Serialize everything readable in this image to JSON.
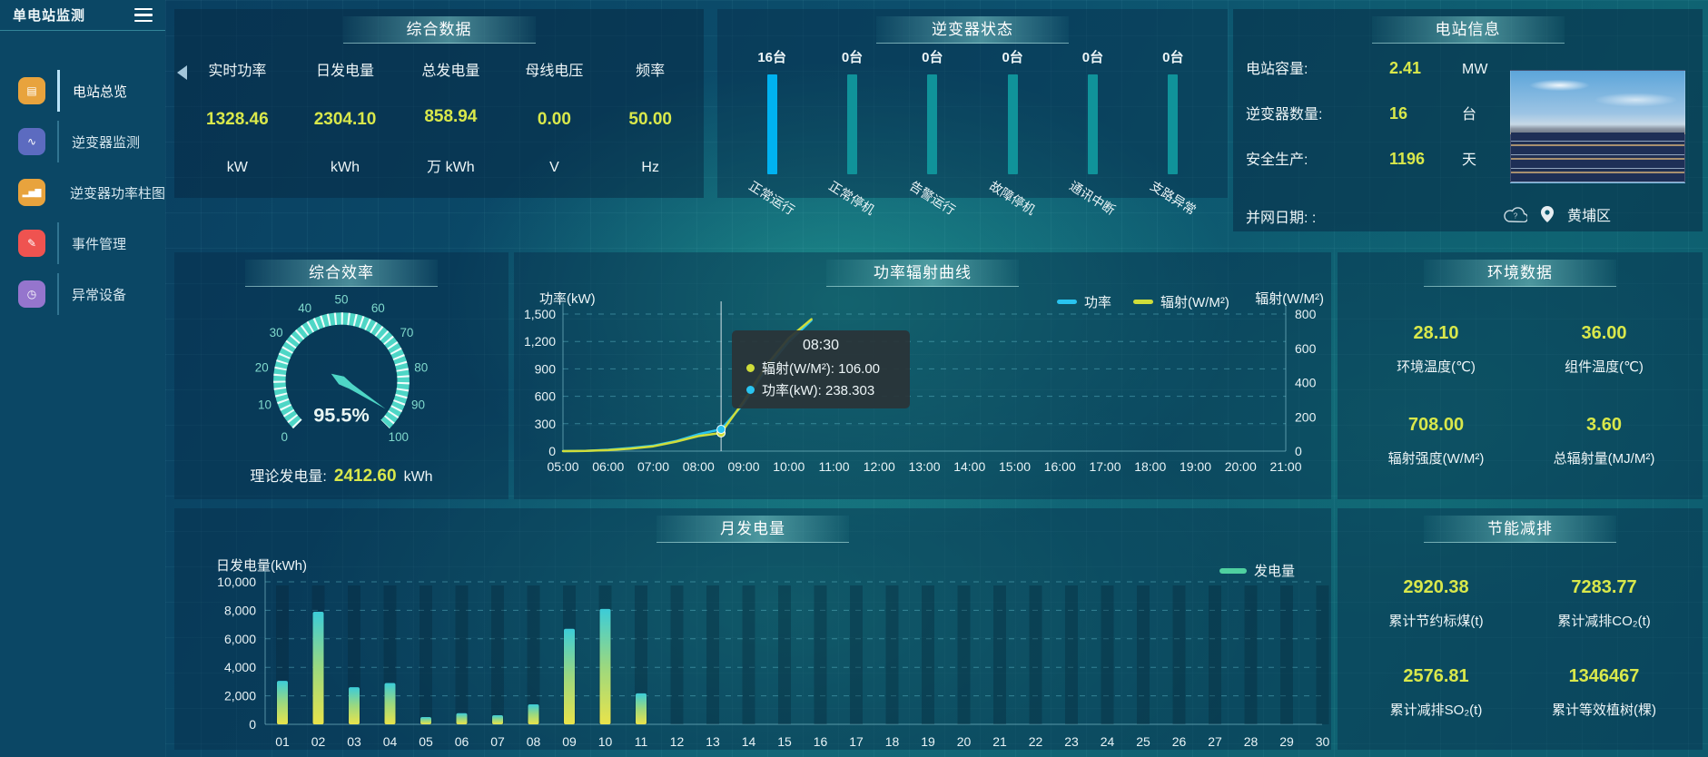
{
  "app": {
    "title": "单电站监测"
  },
  "colors": {
    "value_accent": "#d9e84b",
    "inverter_bar_active": "#00b2f0",
    "inverter_bar_idle": "#10939a",
    "line_power": "#29c4f0",
    "line_radiation": "#cfdd3a",
    "generation_legend": "#4fd0a0",
    "gauge_arc": "#4ed6c6"
  },
  "sidebar": {
    "items": [
      {
        "label": "电站总览",
        "glyph": "▤",
        "color": "#e8a33d",
        "active": true
      },
      {
        "label": "逆变器监测",
        "glyph": "∿",
        "color": "#5c6bc0",
        "active": false
      },
      {
        "label": "逆变器功率柱图",
        "glyph": "▂▅▇",
        "color": "#e8a33d",
        "active": false
      },
      {
        "label": "事件管理",
        "glyph": "✎",
        "color": "#ef5350",
        "active": false
      },
      {
        "label": "异常设备",
        "glyph": "◷",
        "color": "#9575cd",
        "active": false
      }
    ]
  },
  "panels": {
    "summary": {
      "title": "综合数据",
      "metrics": [
        {
          "label": "实时功率",
          "value": "1328.46",
          "unit": "kW"
        },
        {
          "label": "日发电量",
          "value": "2304.10",
          "unit": "kWh"
        },
        {
          "label": "总发电量",
          "value": "858.94",
          "unit": "万 kWh"
        },
        {
          "label": "母线电压",
          "value": "0.00",
          "unit": "V"
        },
        {
          "label": "频率",
          "value": "50.00",
          "unit": "Hz"
        }
      ]
    },
    "inverter": {
      "title": "逆变器状态",
      "bars": [
        {
          "count": "16台",
          "label": "正常运行"
        },
        {
          "count": "0台",
          "label": "正常停机"
        },
        {
          "count": "0台",
          "label": "告警运行"
        },
        {
          "count": "0台",
          "label": "故障停机"
        },
        {
          "count": "0台",
          "label": "通讯中断"
        },
        {
          "count": "0台",
          "label": "支路异常"
        }
      ]
    },
    "station": {
      "title": "电站信息",
      "rows": [
        {
          "label": "电站容量:",
          "value": "2.41",
          "unit": "MW"
        },
        {
          "label": "逆变器数量:",
          "value": "16",
          "unit": "台"
        },
        {
          "label": "安全生产:",
          "value": "1196",
          "unit": "天"
        }
      ],
      "grid_date_label": "并网日期:  :",
      "location": "黄埔区"
    },
    "gauge": {
      "title": "综合效率",
      "value_label": "95.5%",
      "footer_label": "理论发电量:",
      "footer_value": "2412.60",
      "footer_unit": "kWh"
    },
    "curve": {
      "title": "功率辐射曲线",
      "ylabel_left": "功率(kW)",
      "ylabel_right": "辐射(W/M²)",
      "legend": [
        {
          "name": "功率",
          "color": "#29c4f0"
        },
        {
          "name": "辐射(W/M²)",
          "color": "#cfdd3a"
        }
      ],
      "tooltip": {
        "time": "08:30",
        "series": [
          {
            "text": "辐射(W/M²): 106.00"
          },
          {
            "text": "功率(kW): 238.303"
          }
        ]
      }
    },
    "env": {
      "title": "环境数据",
      "metrics": [
        {
          "value": "28.10",
          "label": "环境温度(℃)"
        },
        {
          "value": "36.00",
          "label": "组件温度(℃)"
        },
        {
          "value": "708.00",
          "label": "辐射强度(W/M²)"
        },
        {
          "value": "3.60",
          "label": "总辐射量(MJ/M²)"
        }
      ]
    },
    "month": {
      "title": "月发电量",
      "ylabel": "日发电量(kWh)",
      "legend": "发电量"
    },
    "saving": {
      "title": "节能减排",
      "metrics": [
        {
          "value": "2920.38",
          "label": "累计节约标煤(t)"
        },
        {
          "value": "7283.77",
          "label": "累计减排CO₂(t)"
        },
        {
          "value": "2576.81",
          "label": "累计减排SO₂(t)"
        },
        {
          "value": "1346467",
          "label": "累计等效植树(棵)"
        }
      ]
    }
  },
  "chart_data": [
    {
      "type": "gauge",
      "title": "综合效率",
      "min": 0,
      "max": 100,
      "value": 95.5,
      "unit": "%",
      "ticks": [
        0,
        10,
        20,
        30,
        40,
        50,
        60,
        70,
        80,
        90,
        100
      ]
    },
    {
      "type": "line",
      "title": "功率辐射曲线",
      "x": [
        "05:00",
        "06:00",
        "07:00",
        "08:00",
        "09:00",
        "10:00",
        "11:00",
        "12:00",
        "13:00",
        "14:00",
        "15:00",
        "16:00",
        "17:00",
        "18:00",
        "19:00",
        "20:00",
        "21:00"
      ],
      "ylim_left": [
        0,
        1500
      ],
      "ylim_right": [
        0,
        800
      ],
      "ytick_left_values": [
        0,
        300,
        600,
        900,
        1200,
        1500
      ],
      "ytick_left_labels": [
        "0",
        "300",
        "600",
        "900",
        "1,200",
        "1,500"
      ],
      "ytick_right_values": [
        0,
        200,
        400,
        600,
        800
      ],
      "ytick_right_labels": [
        "0",
        "200",
        "400",
        "600",
        "800"
      ],
      "grid": true,
      "legend_position": "top-right",
      "series": [
        {
          "name": "功率",
          "axis": "left",
          "unit": "kW",
          "color": "#29c4f0",
          "points": [
            [
              5,
              0
            ],
            [
              5.5,
              2
            ],
            [
              6,
              15
            ],
            [
              6.5,
              35
            ],
            [
              7,
              60
            ],
            [
              7.5,
              110
            ],
            [
              8,
              185
            ],
            [
              8.5,
              238.303
            ],
            [
              9,
              520
            ],
            [
              9.5,
              900
            ],
            [
              10,
              1200
            ],
            [
              10.5,
              1430
            ]
          ]
        },
        {
          "name": "辐射(W/M²)",
          "axis": "right",
          "unit": "W/M²",
          "color": "#cfdd3a",
          "points": [
            [
              5,
              0
            ],
            [
              5.5,
              1
            ],
            [
              6,
              6
            ],
            [
              6.5,
              15
            ],
            [
              7,
              28
            ],
            [
              7.5,
              55
            ],
            [
              8,
              88
            ],
            [
              8.5,
              106
            ],
            [
              9,
              290
            ],
            [
              9.5,
              500
            ],
            [
              10,
              660
            ],
            [
              10.5,
              770
            ]
          ]
        }
      ],
      "indicator": {
        "hour": 8.5,
        "time": "08:30",
        "markers": [
          {
            "axis": "right",
            "value": 106,
            "color": "#cfdd3a"
          },
          {
            "axis": "left",
            "value": 238.303,
            "color": "#29c4f0"
          }
        ]
      }
    },
    {
      "type": "bar",
      "title": "月发电量",
      "ylabel": "日发电量(kWh)",
      "legend": "发电量",
      "ylim": [
        0,
        10000
      ],
      "ytick_values": [
        0,
        2000,
        4000,
        6000,
        8000,
        10000
      ],
      "ytick_labels": [
        "0",
        "2,000",
        "4,000",
        "6,000",
        "8,000",
        "10,000"
      ],
      "categories": [
        "01",
        "02",
        "03",
        "04",
        "05",
        "06",
        "07",
        "08",
        "09",
        "10",
        "11",
        "12",
        "13",
        "14",
        "15",
        "16",
        "17",
        "18",
        "19",
        "20",
        "21",
        "22",
        "23",
        "24",
        "25",
        "26",
        "27",
        "28",
        "29",
        "30"
      ],
      "values": [
        3050,
        7900,
        2600,
        2900,
        510,
        780,
        640,
        1400,
        6700,
        8100,
        2170,
        0,
        0,
        0,
        0,
        0,
        0,
        0,
        0,
        0,
        0,
        0,
        0,
        0,
        0,
        0,
        0,
        0,
        0,
        0
      ]
    }
  ]
}
